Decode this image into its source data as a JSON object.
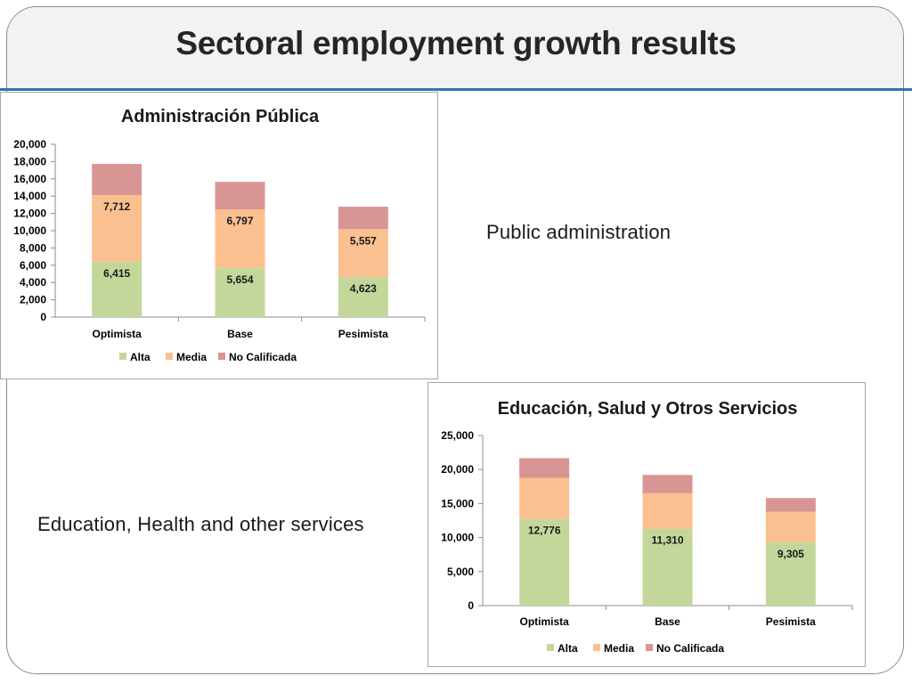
{
  "title": "Sectoral employment growth results",
  "captions": {
    "public_admin": "Public administration",
    "education_health": "Education, Health and other services"
  },
  "colors": {
    "alta": "#c4d79b",
    "media": "#fac090",
    "no_calificada": "#d99594",
    "title_band": "#f2f2f2",
    "title_rule": "#2e75b6"
  },
  "chart_data": [
    {
      "type": "bar",
      "stacked": true,
      "title": "Administración Pública",
      "categories": [
        "Optimista",
        "Base",
        "Pesimista"
      ],
      "ylim": [
        0,
        20000
      ],
      "yticks": [
        "20,000",
        "18,000",
        "16,000",
        "14,000",
        "12,000",
        "10,000",
        "8,000",
        "6,000",
        "4,000",
        "2,000",
        "0"
      ],
      "ytick_values": [
        20000,
        18000,
        16000,
        14000,
        12000,
        10000,
        8000,
        6000,
        4000,
        2000,
        0
      ],
      "series": [
        {
          "name": "Alta",
          "values": [
            6415,
            5654,
            4623
          ],
          "labels": [
            "6,415",
            "5,654",
            "4,623"
          ],
          "color": "#c4d79b"
        },
        {
          "name": "Media",
          "values": [
            7712,
            6797,
            5557
          ],
          "labels": [
            "7,712",
            "6,797",
            "5,557"
          ],
          "color": "#fac090"
        },
        {
          "name": "No Calificada",
          "values": [
            3600,
            3200,
            2600
          ],
          "labels": null,
          "color": "#d99594"
        }
      ],
      "legend": "bottom",
      "grid": false
    },
    {
      "type": "bar",
      "stacked": true,
      "title": "Educación, Salud y Otros Servicios",
      "categories": [
        "Optimista",
        "Base",
        "Pesimista"
      ],
      "ylim": [
        0,
        25000
      ],
      "yticks": [
        "25,000",
        "20,000",
        "15,000",
        "10,000",
        "5,000",
        "0"
      ],
      "ytick_values": [
        25000,
        20000,
        15000,
        10000,
        5000,
        0
      ],
      "series": [
        {
          "name": "Alta",
          "values": [
            12776,
            11310,
            9305
          ],
          "labels": [
            "12,776",
            "11,310",
            "9,305"
          ],
          "color": "#c4d79b"
        },
        {
          "name": "Media",
          "values": [
            6000,
            5200,
            4500
          ],
          "labels": null,
          "color": "#fac090"
        },
        {
          "name": "No Calificada",
          "values": [
            2900,
            2700,
            2000
          ],
          "labels": null,
          "color": "#d99594"
        }
      ],
      "legend": "bottom",
      "grid": false
    }
  ]
}
